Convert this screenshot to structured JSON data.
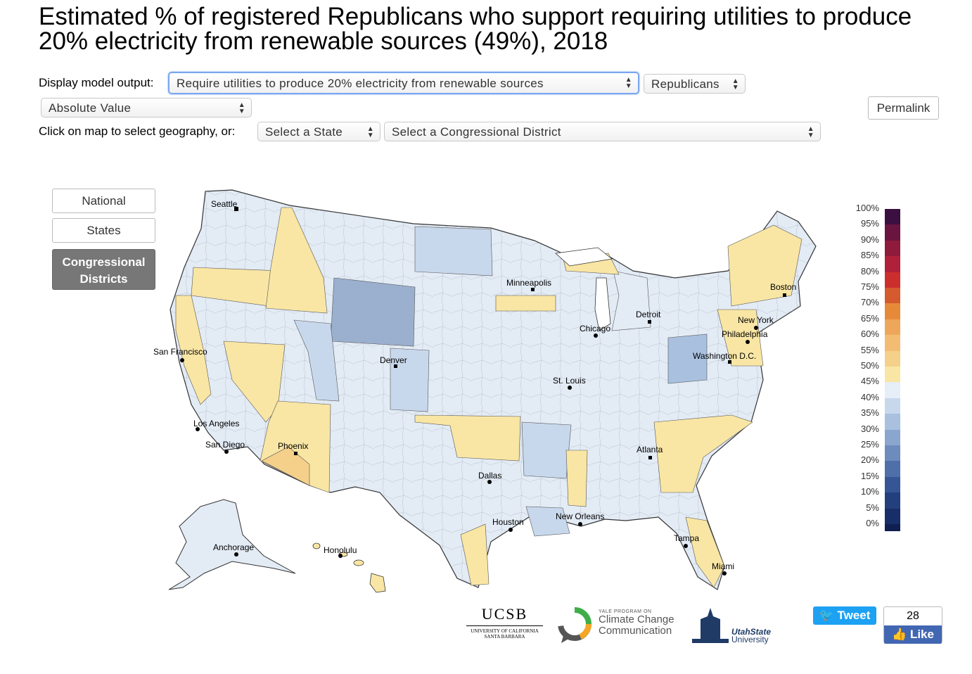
{
  "title": "Estimated % of registered Republicans who support requiring utilities to produce 20% electricity from renewable sources (49%), 2018",
  "controls": {
    "display_label": "Display model output:",
    "model_select": "Require utilities to produce 20% electricity from renewable sources",
    "group_select": "Republicans",
    "value_select": "Absolute Value",
    "permalink": "Permalink",
    "geo_label": "Click on map to select geography, or:",
    "state_select": "Select a State",
    "district_select": "Select a Congressional District"
  },
  "geo_buttons": {
    "national": "National",
    "states": "States",
    "districts_line1": "Congressional",
    "districts_line2": "Districts"
  },
  "cities": [
    "Seattle",
    "San Francisco",
    "Los Angeles",
    "San Diego",
    "Phoenix",
    "Denver",
    "Minneapolis",
    "Chicago",
    "Detroit",
    "St. Louis",
    "Dallas",
    "Houston",
    "New Orleans",
    "Atlanta",
    "Tampa",
    "Miami",
    "Washington D.C.",
    "Philadelphia",
    "New York",
    "Boston",
    "Anchorage",
    "Honolulu"
  ],
  "legend": {
    "labels": [
      "100%",
      "95%",
      "90%",
      "85%",
      "80%",
      "75%",
      "70%",
      "65%",
      "60%",
      "55%",
      "50%",
      "45%",
      "40%",
      "35%",
      "30%",
      "25%",
      "20%",
      "15%",
      "10%",
      "5%",
      "0%"
    ],
    "colors": [
      "#3b0f3f",
      "#6a1540",
      "#8e1b3c",
      "#b1203a",
      "#cc2e2e",
      "#d55a2d",
      "#e68a3a",
      "#eea75a",
      "#f2bd72",
      "#f5d08a",
      "#f9e6a4",
      "#e6eef8",
      "#c8d8ec",
      "#a9c1df",
      "#8aa6cf",
      "#6d8bbd",
      "#4f6fa9",
      "#355594",
      "#233f7e",
      "#172e68",
      "#0f1f52"
    ]
  },
  "logos": {
    "ucsb_main": "UCSB",
    "ucsb_sub1": "UNIVERSITY OF CALIFORNIA",
    "ucsb_sub2": "SANTA BARBARA",
    "yale_small": "YALE PROGRAM ON",
    "yale_line1": "Climate Change",
    "yale_line2": "Communication",
    "usu_line1": "UtahState",
    "usu_line2": "University"
  },
  "social": {
    "tweet": "Tweet",
    "like_count": "28",
    "like": "Like"
  }
}
